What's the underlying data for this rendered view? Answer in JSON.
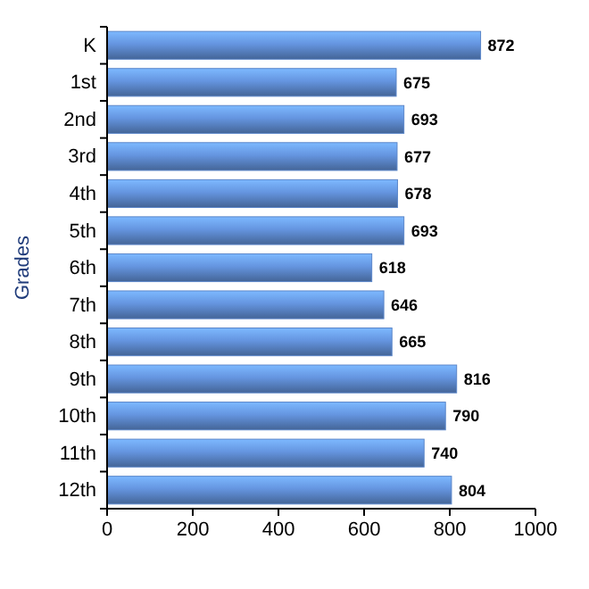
{
  "chart_data": {
    "type": "bar",
    "orientation": "horizontal",
    "ylabel": "Grades",
    "categories": [
      "K",
      "1st",
      "2nd",
      "3rd",
      "4th",
      "5th",
      "6th",
      "7th",
      "8th",
      "9th",
      "10th",
      "11th",
      "12th"
    ],
    "values": [
      872,
      675,
      693,
      677,
      678,
      693,
      618,
      646,
      665,
      816,
      790,
      740,
      804
    ],
    "color": "#5b86c9",
    "xlim": [
      0,
      1000
    ],
    "xticks": [
      0,
      200,
      400,
      600,
      800,
      1000
    ],
    "data_labels": true
  }
}
